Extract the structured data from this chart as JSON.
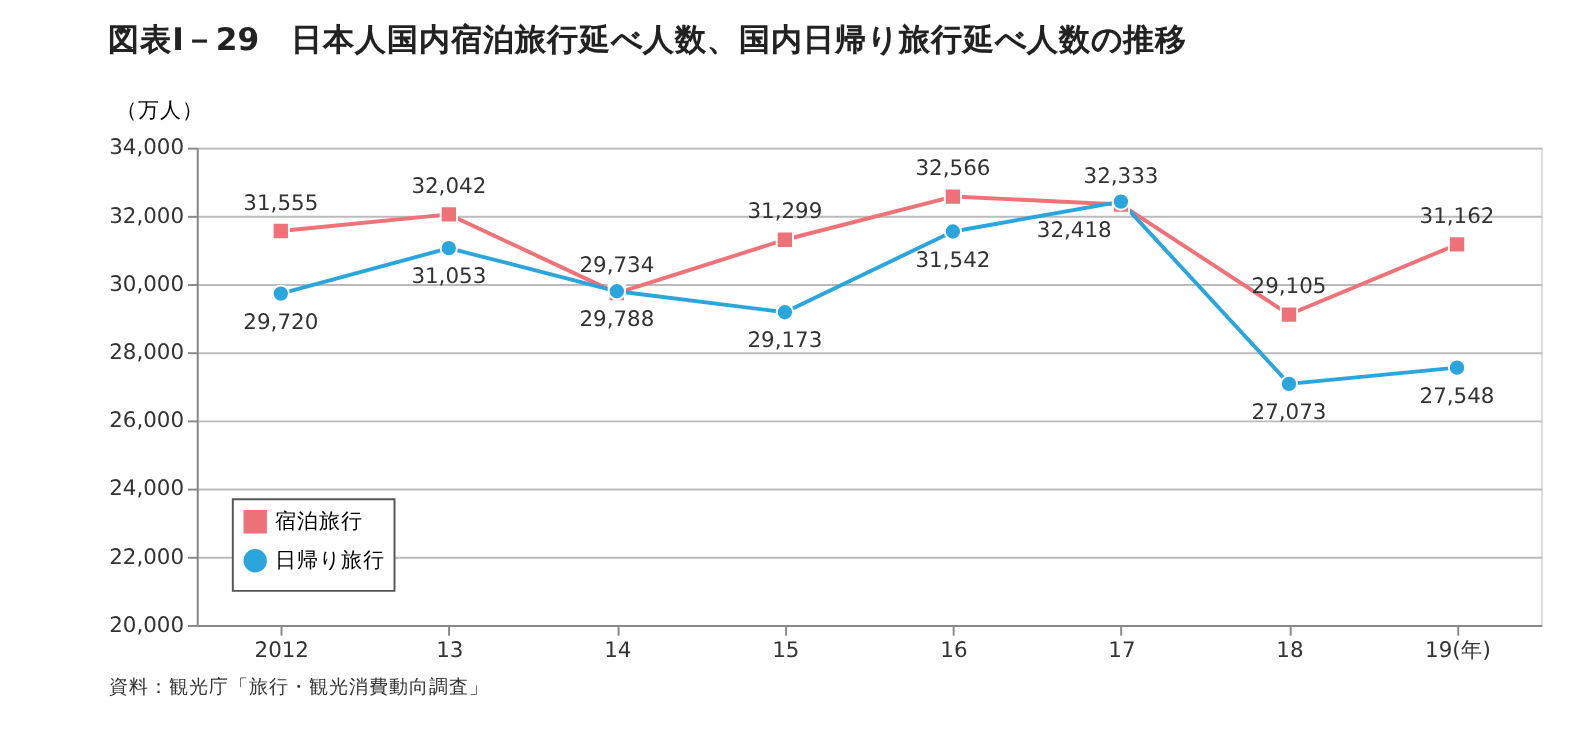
{
  "chart_data": {
    "type": "line",
    "title": "図表Ⅰ－29　日本人国内宿泊旅行延べ人数、国内日帰り旅行延べ人数の推移",
    "ylabel": "（万人）",
    "categories": [
      "2012",
      "13",
      "14",
      "15",
      "16",
      "17",
      "18",
      "19(年)"
    ],
    "series": [
      {
        "name": "宿泊旅行",
        "color": "#ee7277",
        "marker": "square",
        "values": [
          31555,
          32042,
          29734,
          31299,
          32566,
          32333,
          29105,
          31162
        ],
        "value_labels": [
          "31,555",
          "32,042",
          "29,734",
          "31,299",
          "32,566",
          "32,333",
          "29,105",
          "31,162"
        ]
      },
      {
        "name": "日帰り旅行",
        "color": "#2aa6dd",
        "marker": "circle",
        "values": [
          29720,
          31053,
          29788,
          29173,
          31542,
          32418,
          27073,
          27548
        ],
        "value_labels": [
          "29,720",
          "31,053",
          "29,788",
          "29,173",
          "31,542",
          "32,418",
          "27,073",
          "27,548"
        ]
      }
    ],
    "ylim": [
      20000,
      34000
    ],
    "yticks": [
      {
        "value": 20000,
        "label": "20,000"
      },
      {
        "value": 22000,
        "label": "22,000"
      },
      {
        "value": 24000,
        "label": "24,000"
      },
      {
        "value": 26000,
        "label": "26,000"
      },
      {
        "value": 28000,
        "label": "28,000"
      },
      {
        "value": 30000,
        "label": "30,000"
      },
      {
        "value": 32000,
        "label": "32,000"
      },
      {
        "value": 34000,
        "label": "34,000"
      }
    ],
    "grid": "y",
    "legend": "bottom left",
    "line_style": "solid",
    "annotations": [
      "資料：観光庁「旅行・観光消費動向調査」"
    ]
  }
}
